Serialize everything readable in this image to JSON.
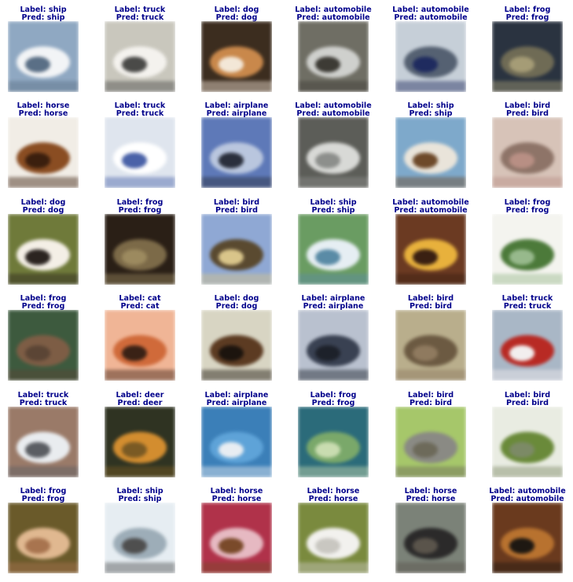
{
  "label_prefix": "Label: ",
  "pred_prefix": "Pred: ",
  "caption_color": "#00008b",
  "rows": [
    [
      {
        "label": "ship",
        "pred": "ship",
        "bg": "#8fa8c2",
        "mid": "#f2f4f6",
        "fg": "#5a6f86",
        "icon": "ship-image"
      },
      {
        "label": "truck",
        "pred": "truck",
        "bg": "#c9c7bd",
        "mid": "#f4f2ee",
        "fg": "#4a4a48",
        "icon": "truck-image"
      },
      {
        "label": "dog",
        "pred": "dog",
        "bg": "#3c2d1f",
        "mid": "#c9884b",
        "fg": "#f3e7d7",
        "icon": "dog-image"
      },
      {
        "label": "automobile",
        "pred": "automobile",
        "bg": "#6f6e64",
        "mid": "#cfd0cd",
        "fg": "#3d3b35",
        "icon": "car-image"
      },
      {
        "label": "automobile",
        "pred": "automobile",
        "bg": "#c6cfd8",
        "mid": "#556172",
        "fg": "#1f2b5f",
        "icon": "car-image"
      },
      {
        "label": "frog",
        "pred": "frog",
        "bg": "#2a3340",
        "mid": "#6f6b55",
        "fg": "#a59c76",
        "icon": "frog-image"
      }
    ],
    [
      {
        "label": "horse",
        "pred": "horse",
        "bg": "#f1ede6",
        "mid": "#8a4d22",
        "fg": "#3b1f0e",
        "icon": "horse-image"
      },
      {
        "label": "truck",
        "pred": "truck",
        "bg": "#dfe5ee",
        "mid": "#ffffff",
        "fg": "#4a62a8",
        "icon": "truck-image"
      },
      {
        "label": "airplane",
        "pred": "airplane",
        "bg": "#5e79b8",
        "mid": "#b9c6de",
        "fg": "#2a2f3c",
        "icon": "airplane-image"
      },
      {
        "label": "automobile",
        "pred": "automobile",
        "bg": "#5c5d58",
        "mid": "#d8d9d6",
        "fg": "#8d8f8c",
        "icon": "car-image"
      },
      {
        "label": "ship",
        "pred": "ship",
        "bg": "#7ea9cb",
        "mid": "#e9e4da",
        "fg": "#6e4a2a",
        "icon": "ship-image"
      },
      {
        "label": "bird",
        "pred": "bird",
        "bg": "#d7c3b8",
        "mid": "#8e7468",
        "fg": "#b88f84",
        "icon": "bird-image"
      }
    ],
    [
      {
        "label": "dog",
        "pred": "dog",
        "bg": "#6f7a3a",
        "mid": "#f4efe6",
        "fg": "#2b2420",
        "icon": "dog-image"
      },
      {
        "label": "frog",
        "pred": "frog",
        "bg": "#2a1f16",
        "mid": "#7c6a48",
        "fg": "#9c8a5f",
        "icon": "frog-image"
      },
      {
        "label": "bird",
        "pred": "bird",
        "bg": "#8fa8d4",
        "mid": "#5a4a30",
        "fg": "#d9c58a",
        "icon": "bird-image"
      },
      {
        "label": "ship",
        "pred": "ship",
        "bg": "#6a9c62",
        "mid": "#e6eef3",
        "fg": "#5a8ba6",
        "icon": "ship-image"
      },
      {
        "label": "automobile",
        "pred": "automobile",
        "bg": "#6b3a22",
        "mid": "#e8b13c",
        "fg": "#3a2012",
        "icon": "car-image"
      },
      {
        "label": "frog",
        "pred": "frog",
        "bg": "#f4f4ef",
        "mid": "#4c7a3a",
        "fg": "#97b98c",
        "icon": "frog-image"
      }
    ],
    [
      {
        "label": "frog",
        "pred": "frog",
        "bg": "#3d5a3e",
        "mid": "#7d5d45",
        "fg": "#5b4535",
        "icon": "frog-image"
      },
      {
        "label": "cat",
        "pred": "cat",
        "bg": "#f0b596",
        "mid": "#d06a3a",
        "fg": "#3a2216",
        "icon": "cat-image"
      },
      {
        "label": "dog",
        "pred": "dog",
        "bg": "#d8d5c3",
        "mid": "#5c3b22",
        "fg": "#1c140e",
        "icon": "dog-image"
      },
      {
        "label": "airplane",
        "pred": "airplane",
        "bg": "#b9c1cf",
        "mid": "#394152",
        "fg": "#1d212a",
        "icon": "airplane-image"
      },
      {
        "label": "bird",
        "pred": "bird",
        "bg": "#b9ae8c",
        "mid": "#6c5a42",
        "fg": "#8f7a5f",
        "icon": "bird-image"
      },
      {
        "label": "truck",
        "pred": "truck",
        "bg": "#a9b7c6",
        "mid": "#b82a24",
        "fg": "#f2eeee",
        "icon": "truck-image"
      }
    ],
    [
      {
        "label": "truck",
        "pred": "truck",
        "bg": "#9a7a68",
        "mid": "#e9ecef",
        "fg": "#5b5e63",
        "icon": "truck-image"
      },
      {
        "label": "deer",
        "pred": "deer",
        "bg": "#2f3322",
        "mid": "#d38d2f",
        "fg": "#7a5a24",
        "icon": "deer-image"
      },
      {
        "label": "airplane",
        "pred": "airplane",
        "bg": "#3b7fb8",
        "mid": "#5ea3d8",
        "fg": "#e8edf2",
        "icon": "airplane-image"
      },
      {
        "label": "frog",
        "pred": "frog",
        "bg": "#2b6b7a",
        "mid": "#7aa86a",
        "fg": "#c9dcb0",
        "icon": "frog-image"
      },
      {
        "label": "bird",
        "pred": "bird",
        "bg": "#a6c76a",
        "mid": "#8a8a84",
        "fg": "#6d6a5a",
        "icon": "bird-image"
      },
      {
        "label": "bird",
        "pred": "bird",
        "bg": "#e9ece2",
        "mid": "#6a8a3a",
        "fg": "#7c8a66",
        "icon": "bird-image"
      }
    ],
    [
      {
        "label": "frog",
        "pred": "frog",
        "bg": "#6a5a2a",
        "mid": "#e0b890",
        "fg": "#a8744f",
        "icon": "frog-image"
      },
      {
        "label": "ship",
        "pred": "ship",
        "bg": "#e6edf2",
        "mid": "#9dadb8",
        "fg": "#4f4f4f",
        "icon": "ship-image"
      },
      {
        "label": "horse",
        "pred": "horse",
        "bg": "#b0324a",
        "mid": "#e6b9c2",
        "fg": "#7a4a2a",
        "icon": "horse-image"
      },
      {
        "label": "horse",
        "pred": "horse",
        "bg": "#7a8a3e",
        "mid": "#f2f1ee",
        "fg": "#c9c7c1",
        "icon": "horse-image"
      },
      {
        "label": "horse",
        "pred": "horse",
        "bg": "#7b8278",
        "mid": "#2b2a2a",
        "fg": "#5a544b",
        "icon": "horse-image"
      },
      {
        "label": "automobile",
        "pred": "automobile",
        "bg": "#6a3a1e",
        "mid": "#b8722f",
        "fg": "#1e1812",
        "icon": "car-image"
      }
    ]
  ]
}
